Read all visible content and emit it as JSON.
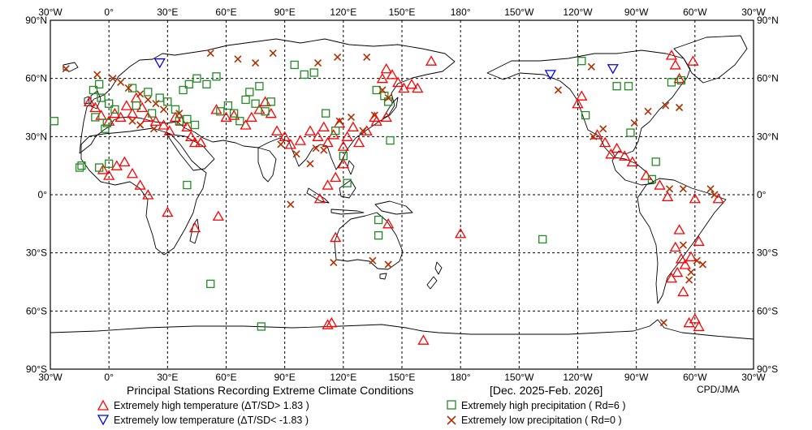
{
  "title": "Principal Stations Recording Extreme Climate Conditions",
  "period": "[Dec. 2025-Feb. 2026]",
  "credit": "CPD/JMA",
  "lon_labels": [
    "30°W",
    "0°",
    "30°E",
    "60°E",
    "90°E",
    "120°E",
    "150°E",
    "180°",
    "150°W",
    "120°W",
    "90°W",
    "60°W",
    "30°W"
  ],
  "lat_labels": [
    "90°N",
    "60°N",
    "30°N",
    "0°",
    "30°S",
    "60°S",
    "90°S"
  ],
  "legend": [
    {
      "key": "high_temp",
      "label": "Extremely high temperature (ΔT/SD> 1.83 )",
      "symbol": "triangle-up",
      "color": "#ff0000"
    },
    {
      "key": "low_temp",
      "label": "Extremely low temperature  (ΔT/SD< -1.83 )",
      "symbol": "triangle-down",
      "color": "#0000ee"
    },
    {
      "key": "high_precip",
      "label": "Extremely high precipitation ( Rd=6 )",
      "symbol": "square",
      "color": "#228b22"
    },
    {
      "key": "low_precip",
      "label": "Extremely low precipitation ( Rd=0 )",
      "symbol": "cross",
      "color": "#b03000"
    }
  ],
  "chart_data": {
    "type": "scatter",
    "projection": "equirectangular",
    "lon_range": [
      -30,
      330
    ],
    "lat_range": [
      -90,
      90
    ],
    "grid": true,
    "series": [
      {
        "name": "Extremely high temperature (ΔT/SD> 1.83 )",
        "symbol": "triangle-up",
        "color": "#ff0000",
        "points": [
          [
            -10,
            48
          ],
          [
            -7,
            45
          ],
          [
            -4,
            41
          ],
          [
            0,
            38
          ],
          [
            3,
            42
          ],
          [
            6,
            40
          ],
          [
            9,
            46
          ],
          [
            12,
            42
          ],
          [
            14,
            50
          ],
          [
            17,
            45
          ],
          [
            20,
            40
          ],
          [
            24,
            38
          ],
          [
            28,
            36
          ],
          [
            31,
            33
          ],
          [
            34,
            40
          ],
          [
            37,
            38
          ],
          [
            40,
            35
          ],
          [
            42,
            30
          ],
          [
            44,
            27
          ],
          [
            47,
            27
          ],
          [
            55,
            44
          ],
          [
            60,
            40
          ],
          [
            64,
            41
          ],
          [
            70,
            36
          ],
          [
            73,
            40
          ],
          [
            77,
            44
          ],
          [
            80,
            48
          ],
          [
            83,
            42
          ],
          [
            86,
            33
          ],
          [
            90,
            30
          ],
          [
            93,
            26
          ],
          [
            98,
            28
          ],
          [
            103,
            33
          ],
          [
            107,
            30
          ],
          [
            110,
            35
          ],
          [
            112,
            27
          ],
          [
            115,
            31
          ],
          [
            118,
            37
          ],
          [
            120,
            25
          ],
          [
            122,
            30
          ],
          [
            125,
            35
          ],
          [
            128,
            27
          ],
          [
            132,
            33
          ],
          [
            136,
            40
          ],
          [
            140,
            60
          ],
          [
            142,
            65
          ],
          [
            145,
            62
          ],
          [
            148,
            58
          ],
          [
            151,
            55
          ],
          [
            155,
            57
          ],
          [
            158,
            55
          ],
          [
            165,
            69
          ],
          [
            137,
            38
          ],
          [
            142,
            40
          ],
          [
            -3,
            13
          ],
          [
            0,
            10
          ],
          [
            4,
            15
          ],
          [
            8,
            17
          ],
          [
            12,
            11
          ],
          [
            16,
            5
          ],
          [
            20,
            0
          ],
          [
            30,
            -9
          ],
          [
            44,
            -17
          ],
          [
            56,
            -11
          ],
          [
            108,
            -2
          ],
          [
            112,
            5
          ],
          [
            116,
            9
          ],
          [
            120,
            16
          ],
          [
            116,
            -22
          ],
          [
            143,
            -15
          ],
          [
            180,
            -20
          ],
          [
            -110,
            31
          ],
          [
            -106,
            27
          ],
          [
            -103,
            21
          ],
          [
            -100,
            24
          ],
          [
            -96,
            20
          ],
          [
            -92,
            17
          ],
          [
            -85,
            10
          ],
          [
            -78,
            5
          ],
          [
            -74,
            -1
          ],
          [
            -60,
            -2
          ],
          [
            -48,
            -2
          ],
          [
            -68,
            -18
          ],
          [
            -70,
            -27
          ],
          [
            -67,
            -33
          ],
          [
            -65,
            -36
          ],
          [
            -69,
            -40
          ],
          [
            -72,
            -43
          ],
          [
            -66,
            -50
          ],
          [
            -62,
            -32
          ],
          [
            -58,
            -24
          ],
          [
            -60,
            -64
          ],
          [
            -63,
            -66
          ],
          [
            -58,
            -68
          ],
          [
            -68,
            60
          ],
          [
            -70,
            67
          ],
          [
            -72,
            72
          ],
          [
            -61,
            69
          ],
          [
            -120,
            47
          ],
          [
            -118,
            51
          ],
          [
            112,
            -67
          ],
          [
            114,
            -66
          ],
          [
            161,
            -75
          ]
        ]
      },
      {
        "name": "Extremely low temperature  (ΔT/SD< -1.83 )",
        "symbol": "triangle-down",
        "color": "#0000ee",
        "points": [
          [
            26,
            68
          ],
          [
            -134,
            62
          ],
          [
            -102,
            65
          ]
        ]
      },
      {
        "name": "Extremely high precipitation ( Rd=6 )",
        "symbol": "square",
        "color": "#228b22",
        "points": [
          [
            -28,
            38
          ],
          [
            -5,
            57
          ],
          [
            -8,
            54
          ],
          [
            -4,
            50
          ],
          [
            0,
            47
          ],
          [
            3,
            44
          ],
          [
            -1,
            37
          ],
          [
            -7,
            40
          ],
          [
            -2,
            34
          ],
          [
            12,
            55
          ],
          [
            20,
            53
          ],
          [
            14,
            46
          ],
          [
            22,
            42
          ],
          [
            26,
            50
          ],
          [
            30,
            48
          ],
          [
            34,
            44
          ],
          [
            36,
            38
          ],
          [
            40,
            39
          ],
          [
            44,
            36
          ],
          [
            38,
            54
          ],
          [
            41,
            57
          ],
          [
            45,
            60
          ],
          [
            50,
            57
          ],
          [
            55,
            61
          ],
          [
            57,
            43
          ],
          [
            61,
            46
          ],
          [
            64,
            42
          ],
          [
            67,
            38
          ],
          [
            70,
            49
          ],
          [
            72,
            53
          ],
          [
            75,
            47
          ],
          [
            80,
            43
          ],
          [
            83,
            48
          ],
          [
            77,
            56
          ],
          [
            95,
            67
          ],
          [
            100,
            62
          ],
          [
            105,
            63
          ],
          [
            111,
            42
          ],
          [
            116,
            33
          ],
          [
            120,
            20
          ],
          [
            137,
            54
          ],
          [
            141,
            51
          ],
          [
            143,
            48
          ],
          [
            144,
            28
          ],
          [
            138,
            -21
          ],
          [
            138,
            -13
          ],
          [
            122,
            6
          ],
          [
            -15,
            14
          ],
          [
            -14,
            15
          ],
          [
            -5,
            14
          ],
          [
            40,
            5
          ],
          [
            52,
            -46
          ],
          [
            78,
            -68
          ],
          [
            -138,
            -23
          ],
          [
            -118,
            69
          ],
          [
            -100,
            56
          ],
          [
            -94,
            56
          ],
          [
            -116,
            41
          ],
          [
            -93,
            32
          ],
          [
            -80,
            17
          ],
          [
            -82,
            8
          ],
          [
            -67,
            59
          ],
          [
            -72,
            58
          ],
          [
            0,
            16
          ]
        ]
      },
      {
        "name": "Extremely low precipitation ( Rd=0 )",
        "symbol": "cross",
        "color": "#b03000",
        "points": [
          [
            -22,
            65
          ],
          [
            -6,
            62
          ],
          [
            2,
            60
          ],
          [
            6,
            58
          ],
          [
            10,
            55
          ],
          [
            16,
            52
          ],
          [
            20,
            49
          ],
          [
            24,
            47
          ],
          [
            28,
            44
          ],
          [
            12,
            38
          ],
          [
            16,
            36
          ],
          [
            23,
            34
          ],
          [
            36,
            42
          ],
          [
            52,
            73
          ],
          [
            66,
            70
          ],
          [
            75,
            68
          ],
          [
            84,
            73
          ],
          [
            107,
            68
          ],
          [
            117,
            71
          ],
          [
            132,
            71
          ],
          [
            88,
            26
          ],
          [
            96,
            21
          ],
          [
            103,
            16
          ],
          [
            106,
            24
          ],
          [
            110,
            23
          ],
          [
            118,
            38
          ],
          [
            124,
            40
          ],
          [
            130,
            33
          ],
          [
            136,
            41
          ],
          [
            140,
            54
          ],
          [
            143,
            50
          ],
          [
            93,
            -5
          ],
          [
            115,
            -35
          ],
          [
            135,
            -34
          ],
          [
            143,
            -36
          ],
          [
            -75,
            46
          ],
          [
            -68,
            45
          ],
          [
            -84,
            43
          ],
          [
            -91,
            37
          ],
          [
            -73,
            3
          ],
          [
            -66,
            3
          ],
          [
            -52,
            3
          ],
          [
            -59,
            -34
          ],
          [
            -56,
            -36
          ],
          [
            -62,
            -40
          ],
          [
            -63,
            -44
          ],
          [
            -66,
            -26
          ],
          [
            -50,
            0
          ],
          [
            -112,
            30
          ],
          [
            -107,
            34
          ],
          [
            -113,
            66
          ],
          [
            -130,
            54
          ],
          [
            -76,
            -66
          ]
        ]
      }
    ]
  }
}
